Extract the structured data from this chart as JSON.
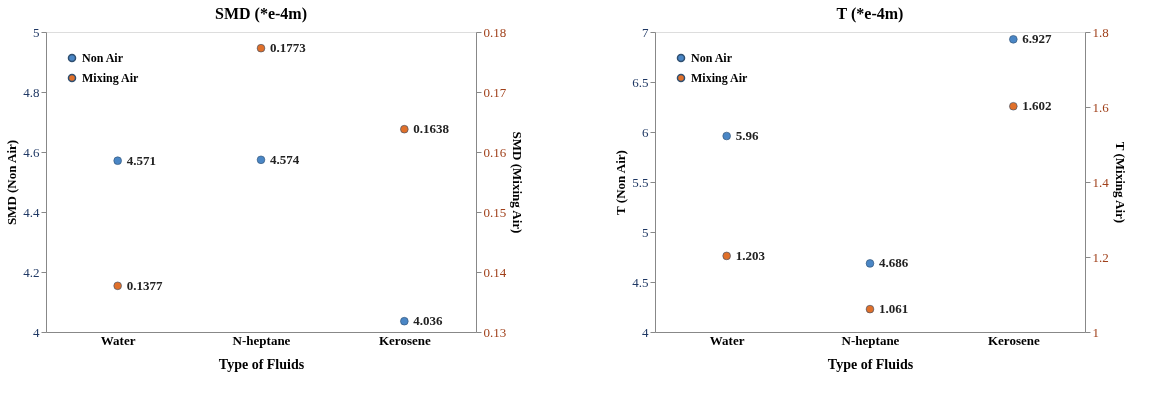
{
  "chart_data": [
    {
      "type": "scatter",
      "title": "SMD (*e-4m)",
      "xlabel": "Type of Fluids",
      "ylabel": "SMD (Non Air)",
      "y2label": "SMD (Mixing Air)",
      "categories": [
        "Water",
        "N-heptane",
        "Kerosene"
      ],
      "series": [
        {
          "name": "Non Air",
          "color": "#4a86c5",
          "values": [
            4.571,
            4.574,
            4.036
          ]
        },
        {
          "name": "Mixing Air",
          "color": "#e0702a",
          "values": [
            0.1377,
            0.1773,
            0.1638
          ],
          "axis": "y2"
        }
      ],
      "ylim": [
        4,
        5
      ],
      "yticks": [
        4,
        4.2,
        4.4,
        4.6,
        4.8,
        5
      ],
      "y2lim": [
        0.13,
        0.18
      ],
      "y2ticks": [
        0.13,
        0.14,
        0.15,
        0.16,
        0.17,
        0.18
      ],
      "data_labels": true,
      "legend": "top left",
      "marker": "circle",
      "grid": false
    },
    {
      "type": "scatter",
      "title": "T (*e-4m)",
      "xlabel": "Type of Fluids",
      "ylabel": "T (Non Air)",
      "y2label": "T (Mixing Air)",
      "categories": [
        "Water",
        "N-heptane",
        "Kerosene"
      ],
      "series": [
        {
          "name": "Non Air",
          "color": "#4a86c5",
          "values": [
            5.96,
            4.686,
            6.927
          ]
        },
        {
          "name": "Mixing Air",
          "color": "#e0702a",
          "values": [
            1.203,
            1.061,
            1.602
          ],
          "axis": "y2"
        }
      ],
      "ylim": [
        4,
        7
      ],
      "yticks": [
        4,
        4.5,
        5,
        5.5,
        6,
        6.5,
        7
      ],
      "y2lim": [
        1,
        1.8
      ],
      "y2ticks": [
        1,
        1.2,
        1.4,
        1.6,
        1.8
      ],
      "data_labels": true,
      "legend": "top left",
      "marker": "circle",
      "grid": false
    }
  ]
}
